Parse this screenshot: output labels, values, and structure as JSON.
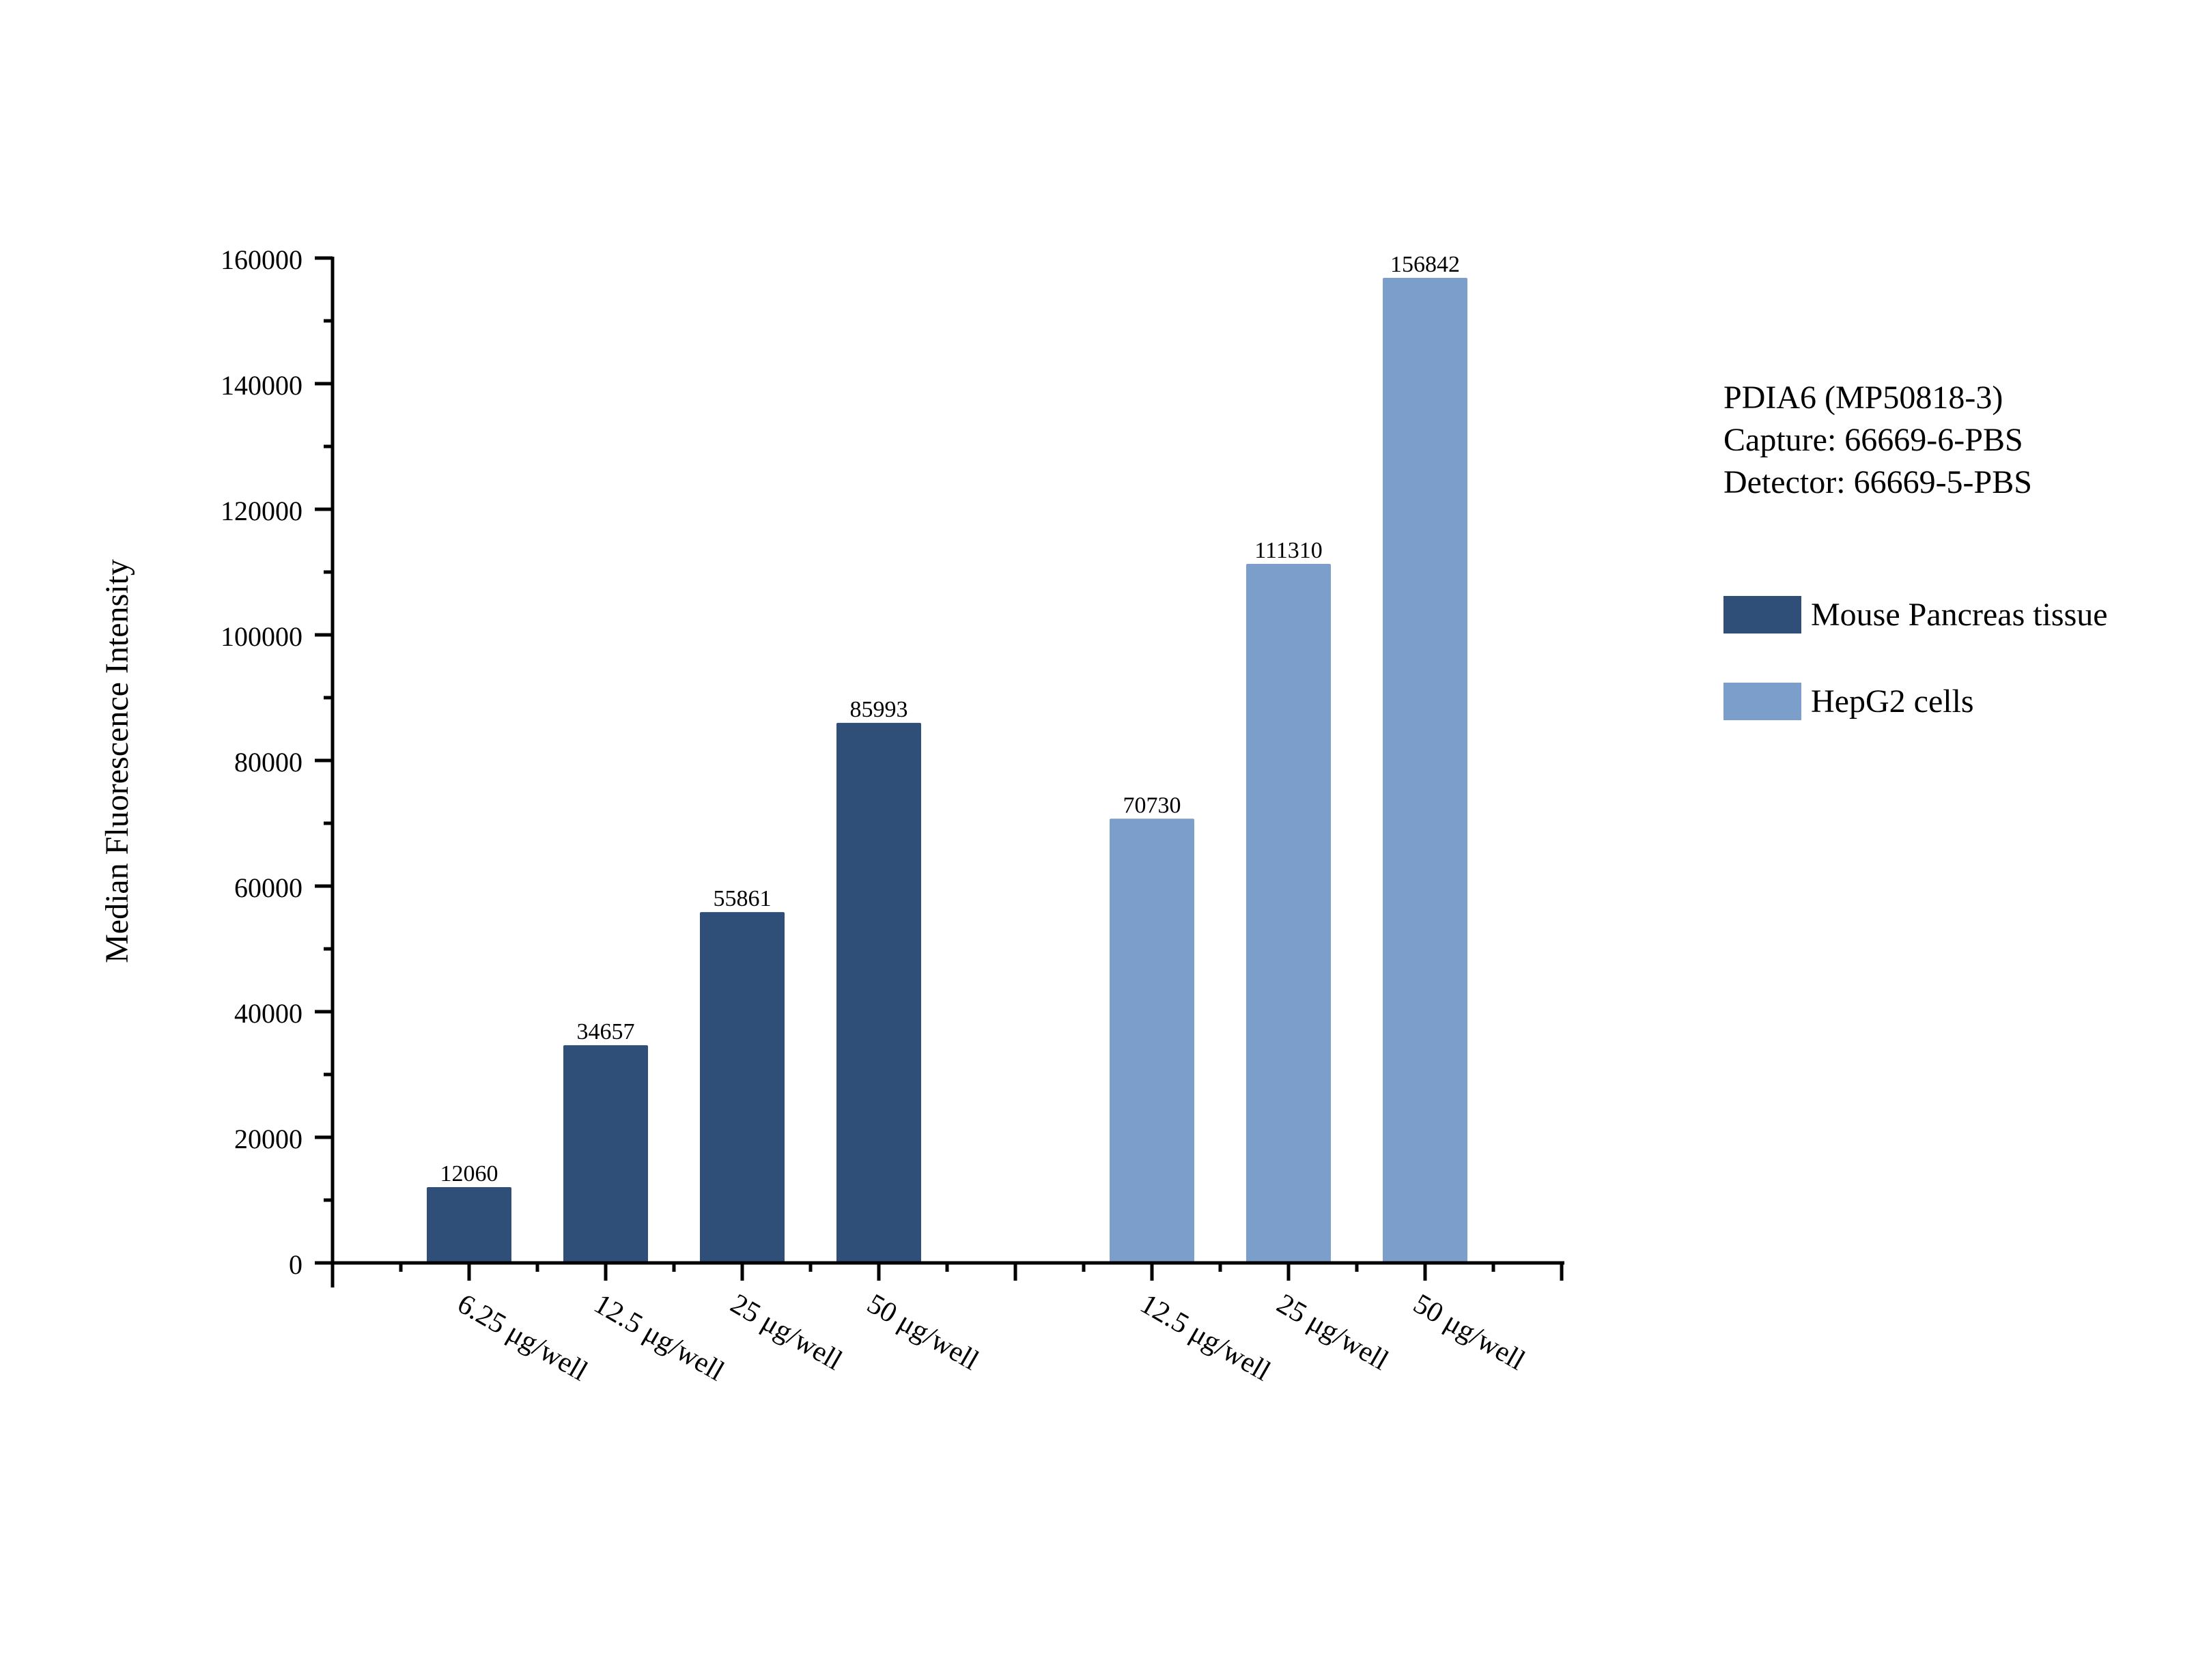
{
  "chart_data": {
    "type": "bar",
    "title": "PDIA6 (MP50818-3)",
    "annotations": [
      "PDIA6 (MP50818-3)",
      "Capture: 66669-6-PBS",
      "Detector: 66669-5-PBS"
    ],
    "xlabel": "",
    "ylabel": "Median Fluorescence Intensity",
    "ylim": [
      0,
      160000
    ],
    "yticks": [
      0,
      20000,
      40000,
      60000,
      80000,
      100000,
      120000,
      140000,
      160000
    ],
    "ytick_labels": [
      "0",
      "20000",
      "40000",
      "60000",
      "80000",
      "100000",
      "120000",
      "140000",
      "160000"
    ],
    "grid": false,
    "legend_position": "right",
    "categories": [
      "6.25 μg/well",
      "12.5 μg/well",
      "25 μg/well",
      "50 μg/well",
      "12.5 μg/well",
      "25 μg/well",
      "50 μg/well"
    ],
    "series": [
      {
        "name": "Mouse Pancreas tissue",
        "color": "#2f4f78",
        "categories": [
          "6.25 μg/well",
          "12.5 μg/well",
          "25 μg/well",
          "50 μg/well"
        ],
        "values": [
          12060,
          34657,
          55861,
          85993
        ],
        "labels": [
          "12060",
          "34657",
          "55861",
          "85993"
        ]
      },
      {
        "name": "HepG2 cells",
        "color": "#7c9eca",
        "categories": [
          "12.5 μg/well",
          "25 μg/well",
          "50 μg/well"
        ],
        "values": [
          70730,
          111310,
          156842
        ],
        "labels": [
          "70730",
          "111310",
          "156842"
        ]
      }
    ]
  },
  "info": {
    "line1": "PDIA6 (MP50818-3)",
    "line2": "Capture: 66669-6-PBS",
    "line3": "Detector: 66669-5-PBS"
  },
  "legend": {
    "items": [
      {
        "label": "Mouse Pancreas tissue",
        "color": "#2f4f78"
      },
      {
        "label": "HepG2 cells",
        "color": "#7c9eca"
      }
    ]
  }
}
